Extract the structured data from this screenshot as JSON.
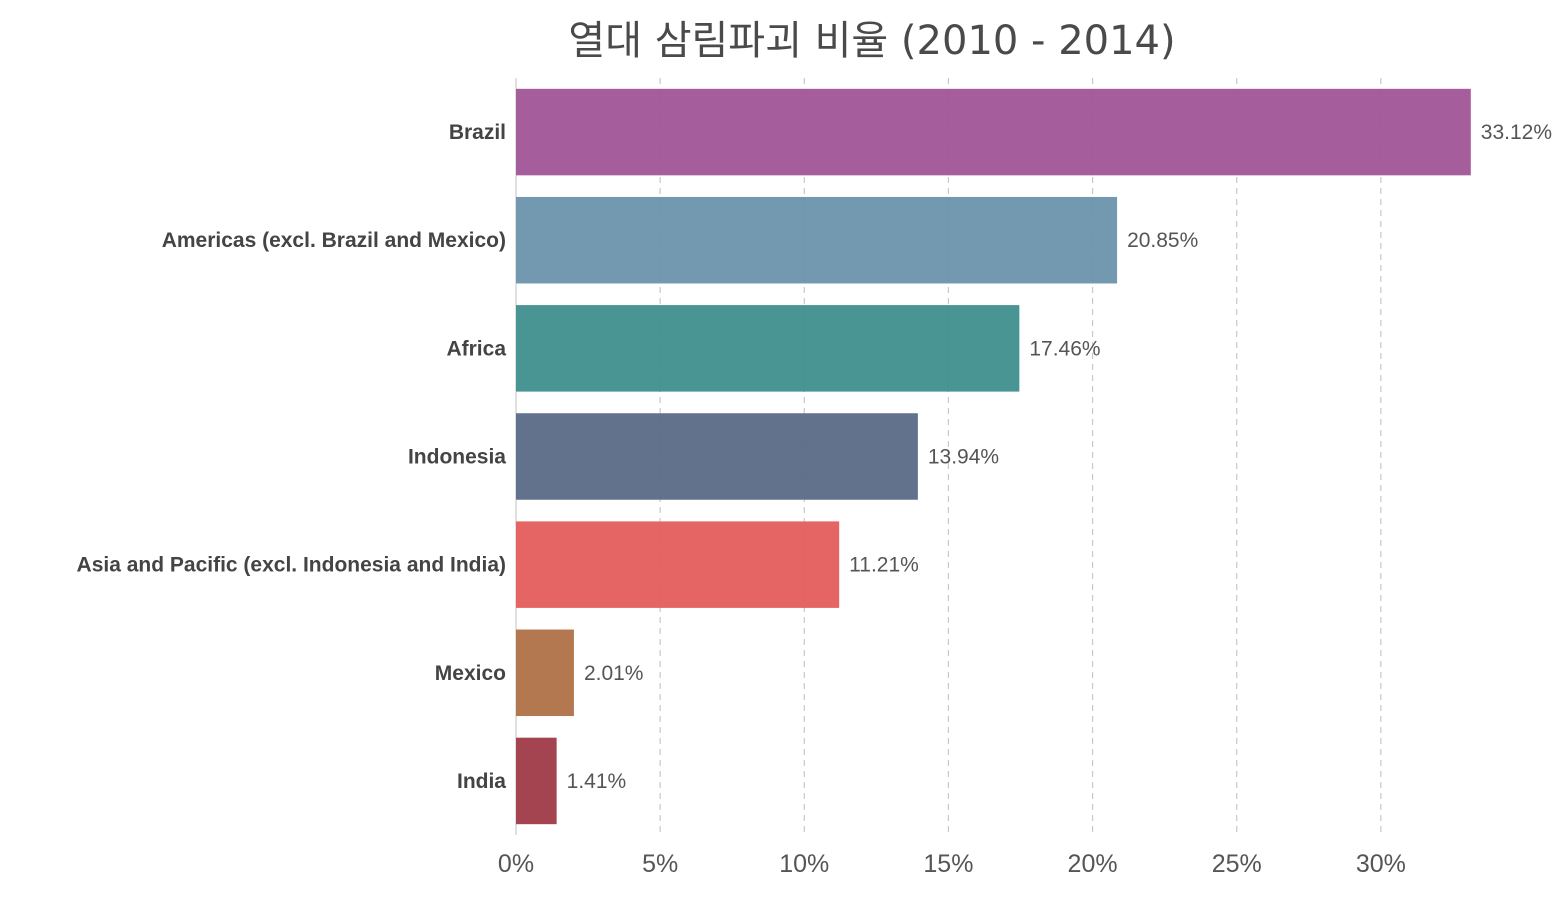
{
  "chart_data": {
    "type": "bar",
    "orientation": "horizontal",
    "title": "열대 삼림파괴 비율 (2010 - 2014)",
    "xlabel": "",
    "ylabel": "",
    "xlim": [
      0,
      35
    ],
    "grid": true,
    "categories": [
      "Brazil",
      "Americas (excl. Brazil and Mexico)",
      "Africa",
      "Indonesia",
      "Asia and Pacific (excl. Indonesia and India)",
      "Mexico",
      "India"
    ],
    "values": [
      33.12,
      20.85,
      17.46,
      13.94,
      11.21,
      2.01,
      1.41
    ],
    "value_labels": [
      "33.12%",
      "20.85%",
      "17.46%",
      "13.94%",
      "11.21%",
      "2.01%",
      "1.41%"
    ],
    "colors": [
      "#a05596",
      "#6b94ad",
      "#3f8f8e",
      "#5b6a86",
      "#e45c5c",
      "#b07148",
      "#9e3a47"
    ],
    "x_ticks": [
      0,
      5,
      10,
      15,
      20,
      25,
      30
    ],
    "x_tick_labels": [
      "0%",
      "5%",
      "10%",
      "15%",
      "20%",
      "25%",
      "30%"
    ]
  }
}
